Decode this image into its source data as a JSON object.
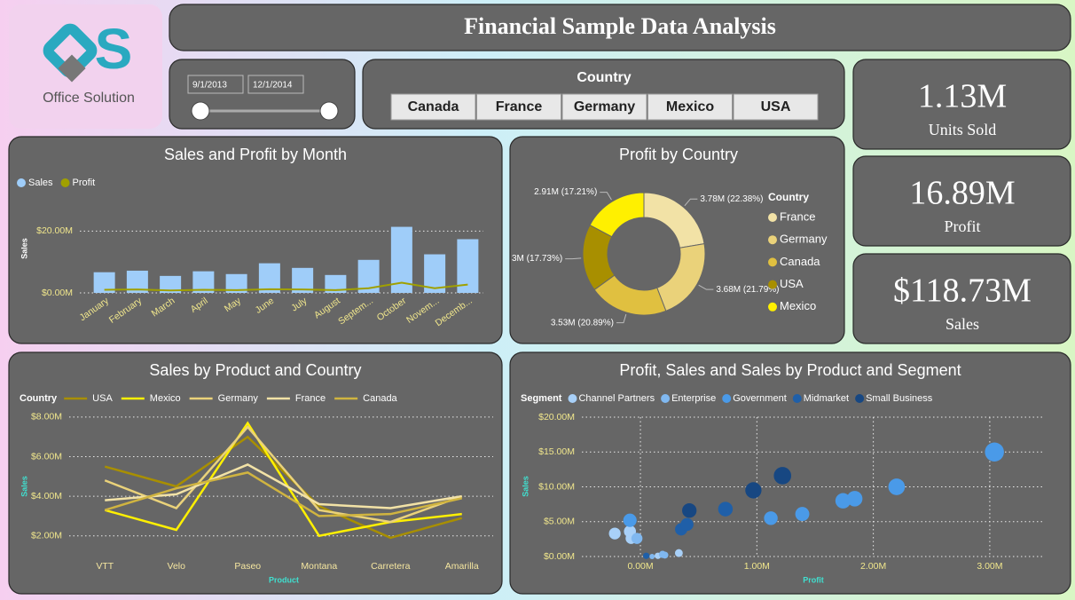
{
  "logo": {
    "text": "Office Solution"
  },
  "header": {
    "title": "Financial Sample Data Analysis"
  },
  "date_slicer": {
    "start": "9/1/2013",
    "end": "12/1/2014"
  },
  "country_slicer": {
    "title": "Country",
    "options": [
      "Canada",
      "France",
      "Germany",
      "Mexico",
      "USA"
    ]
  },
  "cards": [
    {
      "value": "1.13M",
      "label": "Units Sold"
    },
    {
      "value": "16.89M",
      "label": "Profit"
    },
    {
      "value": "$118.73M",
      "label": "Sales"
    }
  ],
  "chart_data": [
    {
      "type": "bar",
      "title": "Sales and Profit by Month",
      "y_label": "Sales",
      "categories": [
        "January",
        "February",
        "March",
        "April",
        "May",
        "June",
        "July",
        "August",
        "Septem...",
        "October",
        "Novem...",
        "Decemb..."
      ],
      "series": [
        {
          "name": "Sales",
          "type": "bar",
          "color": "#9fcdf9",
          "values": [
            6.7,
            7.2,
            5.5,
            7.0,
            6.1,
            9.6,
            8.1,
            5.8,
            10.7,
            21.4,
            12.5,
            17.4
          ]
        },
        {
          "name": "Profit",
          "type": "line",
          "color": "#a0a000",
          "values": [
            1.0,
            1.1,
            0.8,
            1.0,
            0.9,
            1.2,
            1.1,
            0.9,
            1.5,
            3.3,
            1.5,
            2.7
          ]
        }
      ],
      "ylim": [
        0,
        23
      ],
      "yticks": [
        {
          "value": 0,
          "label": "$0.00M"
        },
        {
          "value": 20,
          "label": "$20.00M"
        }
      ],
      "grid": true
    },
    {
      "type": "donut",
      "title": "Profit by Country",
      "legend_title": "Country",
      "categories": [
        "France",
        "Germany",
        "Canada",
        "USA",
        "Mexico"
      ],
      "values": [
        3.78,
        3.68,
        3.53,
        3,
        2.91
      ],
      "value_labels": [
        "3.78M (22.38%)",
        "3.68M (21.79%)",
        "3.53M (20.89%)",
        "3M (17.73%)",
        "2.91M (17.21%)"
      ],
      "colors": [
        "#f2e2a6",
        "#ead27a",
        "#e0c040",
        "#a88f00",
        "#fff000"
      ]
    },
    {
      "type": "line",
      "title": "Sales by Product and Country",
      "legend_title": "Country",
      "x_label": "Product",
      "y_label": "Sales",
      "categories": [
        "VTT",
        "Velo",
        "Paseo",
        "Montana",
        "Carretera",
        "Amarilla"
      ],
      "series": [
        {
          "name": "USA",
          "color": "#a88f00",
          "values": [
            5.5,
            4.5,
            7.0,
            3.5,
            1.9,
            2.9
          ]
        },
        {
          "name": "Mexico",
          "color": "#fff000",
          "values": [
            3.3,
            2.3,
            7.7,
            2.0,
            2.7,
            3.1
          ]
        },
        {
          "name": "Germany",
          "color": "#ead27a",
          "values": [
            4.8,
            3.4,
            7.5,
            3.3,
            2.7,
            4.0
          ]
        },
        {
          "name": "France",
          "color": "#f2e2a6",
          "values": [
            3.8,
            4.1,
            5.6,
            3.6,
            3.4,
            4.0
          ]
        },
        {
          "name": "Canada",
          "color": "#d0b440",
          "values": [
            3.3,
            4.4,
            5.2,
            3.0,
            3.1,
            3.9
          ]
        }
      ],
      "ylim": [
        1,
        8.4
      ],
      "yticks": [
        {
          "value": 2,
          "label": "$2.00M"
        },
        {
          "value": 4,
          "label": "$4.00M"
        },
        {
          "value": 6,
          "label": "$6.00M"
        },
        {
          "value": 8,
          "label": "$8.00M"
        }
      ],
      "grid": true
    },
    {
      "type": "scatter",
      "title": "Profit, Sales and Sales by Product and Segment",
      "legend_title": "Segment",
      "x_label": "Profit",
      "y_label": "Sales",
      "series": [
        {
          "name": "Channel Partners",
          "color": "#a8d0f8",
          "x": [
            -0.22,
            -0.09,
            -0.08,
            0.15,
            0.33
          ],
          "values": [
            3.3,
            3.6,
            2.6,
            0.1,
            0.5
          ]
        },
        {
          "name": "Enterprise",
          "color": "#80b8f0",
          "x": [
            -0.03,
            0.1,
            0.19,
            0.21
          ],
          "values": [
            2.6,
            0.0,
            0.3,
            0.2
          ]
        },
        {
          "name": "Government",
          "color": "#4a9ae8",
          "x": [
            -0.09,
            1.12,
            1.39,
            1.74,
            1.84,
            2.2,
            3.04
          ],
          "values": [
            5.2,
            5.5,
            6.1,
            8.0,
            8.3,
            10.0,
            15.0
          ]
        },
        {
          "name": "Midmarket",
          "color": "#1f5fa8",
          "x": [
            0.05,
            0.35,
            0.4,
            0.73
          ],
          "values": [
            0.1,
            3.9,
            4.6,
            6.8
          ]
        },
        {
          "name": "Small Business",
          "color": "#174782",
          "x": [
            0.42,
            0.97,
            1.22
          ],
          "values": [
            6.6,
            9.5,
            11.6
          ]
        }
      ],
      "xlim": [
        -0.5,
        3.45
      ],
      "xticks": [
        {
          "value": 0,
          "label": "0.00M"
        },
        {
          "value": 1,
          "label": "1.00M"
        },
        {
          "value": 2,
          "label": "2.00M"
        },
        {
          "value": 3,
          "label": "3.00M"
        }
      ],
      "ylim": [
        0,
        20
      ],
      "yticks": [
        {
          "value": 0,
          "label": "$0.00M"
        },
        {
          "value": 5,
          "label": "$5.00M"
        },
        {
          "value": 10,
          "label": "$10.00M"
        },
        {
          "value": 15,
          "label": "$15.00M"
        },
        {
          "value": 20,
          "label": "$20.00M"
        }
      ],
      "grid": true
    }
  ]
}
